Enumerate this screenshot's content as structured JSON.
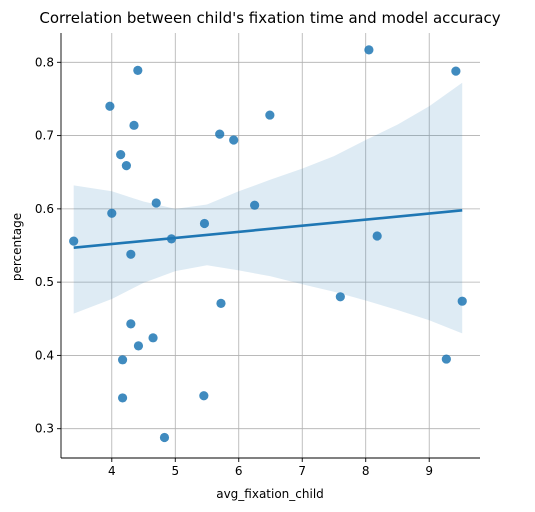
{
  "chart_data": {
    "type": "scatter",
    "title": "Correlation between child's fixation time and model accuracy",
    "xlabel": "avg_fixation_child",
    "ylabel": "percentage",
    "xlim": [
      3.2,
      9.8
    ],
    "ylim": [
      0.26,
      0.84
    ],
    "xticks": [
      4,
      5,
      6,
      7,
      8,
      9
    ],
    "yticks": [
      0.3,
      0.4,
      0.5,
      0.6,
      0.7,
      0.8
    ],
    "xtick_labels": [
      "4",
      "5",
      "6",
      "7",
      "8",
      "9"
    ],
    "ytick_labels": [
      "0.3",
      "0.4",
      "0.5",
      "0.6",
      "0.7",
      "0.8"
    ],
    "grid": true,
    "color": "#1f77b4",
    "points": [
      {
        "x": 3.4,
        "y": 0.556
      },
      {
        "x": 3.97,
        "y": 0.74
      },
      {
        "x": 4.0,
        "y": 0.594
      },
      {
        "x": 4.14,
        "y": 0.674
      },
      {
        "x": 4.17,
        "y": 0.394
      },
      {
        "x": 4.17,
        "y": 0.342
      },
      {
        "x": 4.23,
        "y": 0.659
      },
      {
        "x": 4.3,
        "y": 0.538
      },
      {
        "x": 4.3,
        "y": 0.443
      },
      {
        "x": 4.35,
        "y": 0.714
      },
      {
        "x": 4.41,
        "y": 0.789
      },
      {
        "x": 4.42,
        "y": 0.413
      },
      {
        "x": 4.65,
        "y": 0.424
      },
      {
        "x": 4.7,
        "y": 0.608
      },
      {
        "x": 4.83,
        "y": 0.288
      },
      {
        "x": 4.94,
        "y": 0.559
      },
      {
        "x": 5.45,
        "y": 0.345
      },
      {
        "x": 5.46,
        "y": 0.58
      },
      {
        "x": 5.7,
        "y": 0.702
      },
      {
        "x": 5.72,
        "y": 0.471
      },
      {
        "x": 5.92,
        "y": 0.694
      },
      {
        "x": 6.25,
        "y": 0.605
      },
      {
        "x": 6.49,
        "y": 0.728
      },
      {
        "x": 7.6,
        "y": 0.48
      },
      {
        "x": 8.05,
        "y": 0.817
      },
      {
        "x": 8.18,
        "y": 0.563
      },
      {
        "x": 9.27,
        "y": 0.395
      },
      {
        "x": 9.42,
        "y": 0.788
      },
      {
        "x": 9.52,
        "y": 0.474
      }
    ],
    "regression": {
      "x": [
        3.4,
        9.52
      ],
      "y": [
        0.547,
        0.598
      ]
    },
    "confidence_band": {
      "x": [
        3.4,
        4.0,
        4.5,
        5.0,
        5.5,
        6.0,
        6.5,
        7.0,
        7.5,
        8.0,
        8.5,
        9.0,
        9.52
      ],
      "upper": [
        0.632,
        0.624,
        0.61,
        0.6,
        0.606,
        0.624,
        0.64,
        0.655,
        0.672,
        0.694,
        0.715,
        0.74,
        0.772
      ],
      "lower": [
        0.457,
        0.477,
        0.499,
        0.515,
        0.523,
        0.516,
        0.508,
        0.497,
        0.487,
        0.475,
        0.462,
        0.448,
        0.43
      ]
    }
  }
}
